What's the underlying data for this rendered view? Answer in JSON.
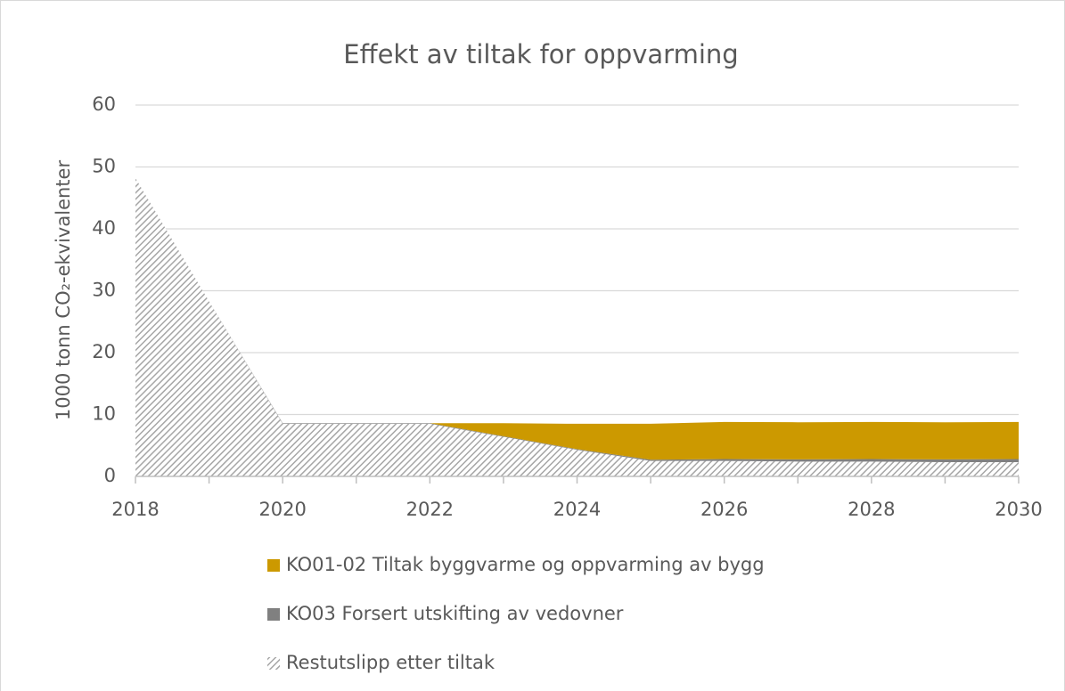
{
  "chart_data": {
    "type": "stacked_area",
    "title": "Effekt av tiltak for oppvarming",
    "y_label": "1000 tonn CO₂-ekvivalenter",
    "x": [
      2018,
      2019,
      2020,
      2021,
      2022,
      2023,
      2024,
      2025,
      2026,
      2027,
      2028,
      2029,
      2030
    ],
    "series": [
      {
        "name": "Restutslipp etter tiltak",
        "color": "#a6a6a6",
        "hatch": true,
        "values": [
          48.2,
          28.3,
          8.5,
          8.5,
          8.5,
          6.4,
          4.3,
          2.5,
          2.5,
          2.4,
          2.4,
          2.3,
          2.3
        ]
      },
      {
        "name": "KO03 Forsert utskifting av vedovner",
        "color": "#808080",
        "hatch": false,
        "values": [
          0,
          0,
          0.1,
          0.1,
          0.1,
          0.1,
          0.1,
          0.2,
          0.3,
          0.35,
          0.4,
          0.45,
          0.5
        ]
      },
      {
        "name": "KO01-02 Tiltak byggvarme og oppvarming av bygg",
        "color": "#cc9900",
        "hatch": false,
        "values": [
          0,
          0,
          0,
          0,
          0,
          2.1,
          4.1,
          5.8,
          6.0,
          6.0,
          6.0,
          6.0,
          6.0
        ]
      }
    ],
    "xlim": [
      2018,
      2030
    ],
    "xticks": [
      2018,
      2020,
      2022,
      2024,
      2026,
      2028,
      2030
    ],
    "ylim": [
      0,
      60
    ],
    "yticks": [
      0,
      10,
      20,
      30,
      40,
      50,
      60
    ],
    "grid": true
  }
}
